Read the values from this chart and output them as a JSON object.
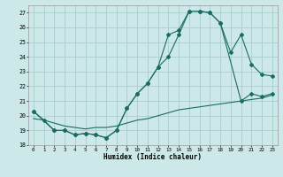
{
  "title": "",
  "xlabel": "Humidex (Indice chaleur)",
  "xlim": [
    -0.5,
    23.5
  ],
  "ylim": [
    18,
    27.5
  ],
  "yticks": [
    18,
    19,
    20,
    21,
    22,
    23,
    24,
    25,
    26,
    27
  ],
  "xticks": [
    0,
    1,
    2,
    3,
    4,
    5,
    6,
    7,
    8,
    9,
    10,
    11,
    12,
    13,
    14,
    15,
    16,
    17,
    18,
    19,
    20,
    21,
    22,
    23
  ],
  "bg_color": "#cce8e8",
  "grid_color": "#aacccc",
  "line_color": "#1a6b60",
  "line1_x": [
    0,
    1,
    2,
    3,
    4,
    5,
    6,
    7,
    8,
    9,
    10,
    11,
    12,
    13,
    14,
    15,
    16,
    17,
    18,
    19,
    20,
    21,
    22,
    23
  ],
  "line1_y": [
    20.3,
    19.7,
    19.0,
    19.0,
    18.7,
    18.8,
    18.7,
    18.5,
    19.0,
    20.5,
    21.5,
    22.2,
    23.3,
    25.5,
    25.8,
    27.1,
    27.1,
    27.0,
    26.3,
    24.3,
    25.5,
    23.5,
    22.8,
    22.7
  ],
  "line2_x": [
    0,
    2,
    3,
    4,
    5,
    6,
    7,
    8,
    9,
    10,
    11,
    12,
    13,
    14,
    15,
    16,
    17,
    18,
    20,
    21,
    22,
    23
  ],
  "line2_y": [
    20.3,
    19.0,
    19.0,
    18.7,
    18.8,
    18.7,
    18.5,
    19.0,
    20.5,
    21.5,
    22.2,
    23.3,
    24.0,
    25.5,
    27.1,
    27.1,
    27.0,
    26.3,
    21.0,
    21.5,
    21.3,
    21.5
  ],
  "line3_x": [
    0,
    1,
    2,
    3,
    4,
    5,
    6,
    7,
    8,
    9,
    10,
    11,
    12,
    13,
    14,
    15,
    16,
    17,
    18,
    19,
    20,
    21,
    22,
    23
  ],
  "line3_y": [
    19.8,
    19.7,
    19.5,
    19.3,
    19.2,
    19.1,
    19.2,
    19.2,
    19.3,
    19.5,
    19.7,
    19.8,
    20.0,
    20.2,
    20.4,
    20.5,
    20.6,
    20.7,
    20.8,
    20.9,
    21.0,
    21.1,
    21.2,
    21.4
  ]
}
